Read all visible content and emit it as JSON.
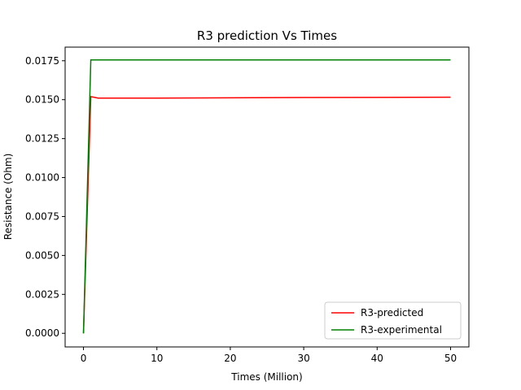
{
  "chart_data": {
    "type": "line",
    "title": "R3 prediction Vs Times",
    "xlabel": "Times (Million)",
    "ylabel": "Resistance (Ohm)",
    "xlim": [
      -2.5,
      52.5
    ],
    "ylim": [
      -0.000875,
      0.018375
    ],
    "xticks": [
      0,
      10,
      20,
      30,
      40,
      50
    ],
    "xtick_labels": [
      "0",
      "10",
      "20",
      "30",
      "40",
      "50"
    ],
    "yticks": [
      0.0,
      0.0025,
      0.005,
      0.0075,
      0.01,
      0.0125,
      0.015,
      0.0175
    ],
    "ytick_labels": [
      "0.0000",
      "0.0025",
      "0.0050",
      "0.0075",
      "0.0100",
      "0.0125",
      "0.0150",
      "0.0175"
    ],
    "grid": false,
    "legend_position": "lower-right",
    "series": [
      {
        "name": "R3-predicted",
        "color": "#ff0000",
        "x": [
          0,
          1,
          2,
          5,
          10,
          20,
          30,
          40,
          50
        ],
        "y": [
          0.0,
          0.0152,
          0.0151,
          0.0151,
          0.0151,
          0.01512,
          0.01514,
          0.01515,
          0.01516
        ]
      },
      {
        "name": "R3-experimental",
        "color": "#008000",
        "x": [
          0,
          1,
          10,
          20,
          30,
          40,
          50
        ],
        "y": [
          0.0,
          0.01755,
          0.01755,
          0.01755,
          0.01755,
          0.01755,
          0.01755
        ]
      }
    ]
  }
}
